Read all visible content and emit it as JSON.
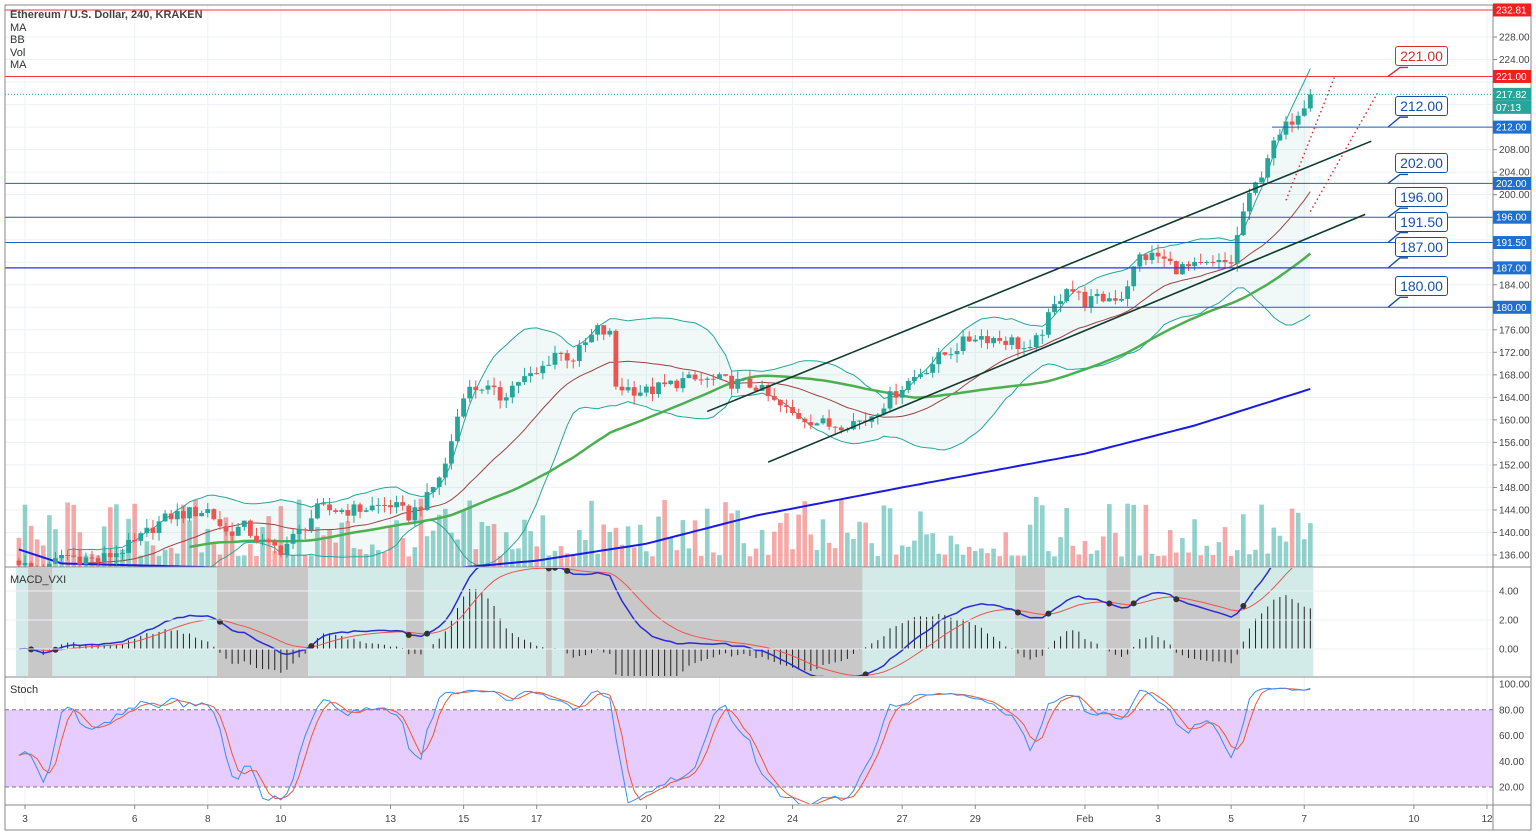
{
  "header": {
    "title": "Ethereum / U.S. Dollar, 240, KRAKEN",
    "indicators": [
      "MA",
      "BB",
      "Vol",
      "MA"
    ]
  },
  "panes": {
    "macd_label": "MACD_VXI",
    "stoch_label": "Stoch"
  },
  "colors": {
    "up": "#26a69a",
    "down": "#ef5350",
    "resistance": "#f23645",
    "support": "#1e5fbf",
    "support_strong": "#2d2dff",
    "ma_fast": "#4caf50",
    "ma_slow": "#1a1ae6",
    "bb": "#26a69a",
    "bb_mid": "#a04040",
    "stoch_band": "#e6ccff",
    "macd_line": "#2b2bd6",
    "macd_signal": "#ef5350"
  },
  "chart_data": [
    {
      "type": "candlestick",
      "title": "Ethereum / U.S. Dollar, 240, KRAKEN",
      "price_axis": {
        "min": 132,
        "max": 232.81,
        "ticks": [
          136,
          140,
          144,
          148,
          152,
          156,
          160,
          164,
          168,
          172,
          176,
          180,
          184,
          188,
          192,
          196,
          200,
          204,
          208,
          212,
          216,
          220,
          224,
          228
        ]
      },
      "date_axis": {
        "ticks": [
          "3",
          "6",
          "8",
          "10",
          "13",
          "15",
          "17",
          "20",
          "22",
          "24",
          "27",
          "29",
          "Feb",
          "3",
          "5",
          "7",
          "10",
          "12"
        ]
      },
      "close_path": [
        [
          "Jan 2 20:00",
          135
        ],
        [
          "Jan 3 00:00",
          134
        ],
        [
          "Jan 3 12:00",
          132.5
        ],
        [
          "Jan 4 00:00",
          136
        ],
        [
          "Jan 5 00:00",
          135
        ],
        [
          "Jan 6 00:00",
          138
        ],
        [
          "Jan 6 12:00",
          141
        ],
        [
          "Jan 7 00:00",
          143
        ],
        [
          "Jan 8 00:00",
          144
        ],
        [
          "Jan 8 12:00",
          140
        ],
        [
          "Jan 9 00:00",
          141
        ],
        [
          "Jan 9 12:00",
          138
        ],
        [
          "Jan 10 00:00",
          137
        ],
        [
          "Jan 10 12:00",
          140
        ],
        [
          "Jan 11 00:00",
          144
        ],
        [
          "Jan 12 00:00",
          144
        ],
        [
          "Jan 13 00:00",
          145
        ],
        [
          "Jan 13 12:00",
          143
        ],
        [
          "Jan 14 00:00",
          146
        ],
        [
          "Jan 14 12:00",
          152
        ],
        [
          "Jan 15 00:00",
          165
        ],
        [
          "Jan 15 12:00",
          166
        ],
        [
          "Jan 16 00:00",
          164
        ],
        [
          "Jan 16 12:00",
          167
        ],
        [
          "Jan 17 00:00",
          168
        ],
        [
          "Jan 17 12:00",
          172
        ],
        [
          "Jan 18 00:00",
          171
        ],
        [
          "Jan 18 16:00",
          176
        ],
        [
          "Jan 19 00:00",
          175
        ],
        [
          "Jan 19 04:00",
          166
        ],
        [
          "Jan 20 00:00",
          165
        ],
        [
          "Jan 21 00:00",
          167
        ],
        [
          "Jan 22 00:00",
          167
        ],
        [
          "Jan 23 00:00",
          166
        ],
        [
          "Jan 23 12:00",
          163
        ],
        [
          "Jan 24 00:00",
          161
        ],
        [
          "Jan 25 00:00",
          159
        ],
        [
          "Jan 26 00:00",
          160
        ],
        [
          "Jan 26 12:00",
          163
        ],
        [
          "Jan 27 00:00",
          166
        ],
        [
          "Jan 28 00:00",
          171
        ],
        [
          "Jan 29 00:00",
          175
        ],
        [
          "Jan 30 00:00",
          174
        ],
        [
          "Jan 30 12:00",
          172
        ],
        [
          "Jan 31 00:00",
          178
        ],
        [
          "Jan 31 12:00",
          184
        ],
        [
          "Feb 1 00:00",
          181
        ],
        [
          "Feb 2 00:00",
          182
        ],
        [
          "Feb 2 12:00",
          189
        ],
        [
          "Feb 3 00:00",
          189
        ],
        [
          "Feb 3 12:00",
          187
        ],
        [
          "Feb 4 00:00",
          187
        ],
        [
          "Feb 5 00:00",
          188
        ],
        [
          "Feb 5 08:00",
          197
        ],
        [
          "Feb 5 20:00",
          204
        ],
        [
          "Feb 6 00:00",
          207
        ],
        [
          "Feb 6 12:00",
          212
        ],
        [
          "Feb 7 04:00",
          217.82
        ]
      ],
      "slow_ma_path": [
        [
          "Jan 2 20:00",
          137
        ],
        [
          "Jan 4 00:00",
          134.5
        ],
        [
          "Jan 10 00:00",
          133.5
        ],
        [
          "Jan 14 00:00",
          133.2
        ],
        [
          "Jan 17 00:00",
          135
        ],
        [
          "Jan 20 00:00",
          138
        ],
        [
          "Jan 23 00:00",
          143
        ],
        [
          "Jan 27 00:00",
          148
        ],
        [
          "Feb 1 00:00",
          154
        ],
        [
          "Feb 4 00:00",
          159
        ],
        [
          "Feb 7 04:00",
          165.5
        ]
      ],
      "last_price": "217.82",
      "countdown": "07:13",
      "horizontal_levels": [
        {
          "price": "232.81",
          "kind": "resistance",
          "callout": ""
        },
        {
          "price": "221.00",
          "kind": "resistance",
          "callout": "221.00"
        },
        {
          "price": "212.00",
          "kind": "support",
          "callout": "212.00"
        },
        {
          "price": "202.00",
          "kind": "support",
          "callout": "202.00"
        },
        {
          "price": "196.00",
          "kind": "support",
          "callout": "196.00"
        },
        {
          "price": "191.50",
          "kind": "support",
          "callout": "191.50"
        },
        {
          "price": "187.00",
          "kind": "support_strong",
          "callout": "187.00"
        },
        {
          "price": "180.00",
          "kind": "support",
          "callout": "180.00"
        }
      ],
      "trend_channel": [
        {
          "from": [
            "Jan 21 16:00",
            161.5
          ],
          "to": [
            "Feb 8 20:00",
            209.5
          ]
        },
        {
          "from": [
            "Jan 23 08:00",
            152.5
          ],
          "to": [
            "Feb 8 16:00",
            196.5
          ]
        }
      ],
      "projections": [
        {
          "from": [
            "Feb 6 12:00",
            199
          ],
          "to": [
            "Feb 7 20:00",
            221
          ]
        },
        {
          "from": [
            "Feb 7 04:00",
            197
          ],
          "to": [
            "Feb 9 00:00",
            218
          ]
        }
      ]
    },
    {
      "type": "macd",
      "name": "MACD_VXI",
      "ylim": [
        -2,
        5.5
      ],
      "ticks": [
        "0.00",
        "2.00",
        "4.00"
      ]
    },
    {
      "type": "stochastic",
      "name": "Stoch",
      "ylim": [
        5,
        105
      ],
      "ticks": [
        "20.00",
        "40.00",
        "60.00",
        "80.00",
        "100.00"
      ],
      "band": [
        20,
        80
      ]
    }
  ]
}
